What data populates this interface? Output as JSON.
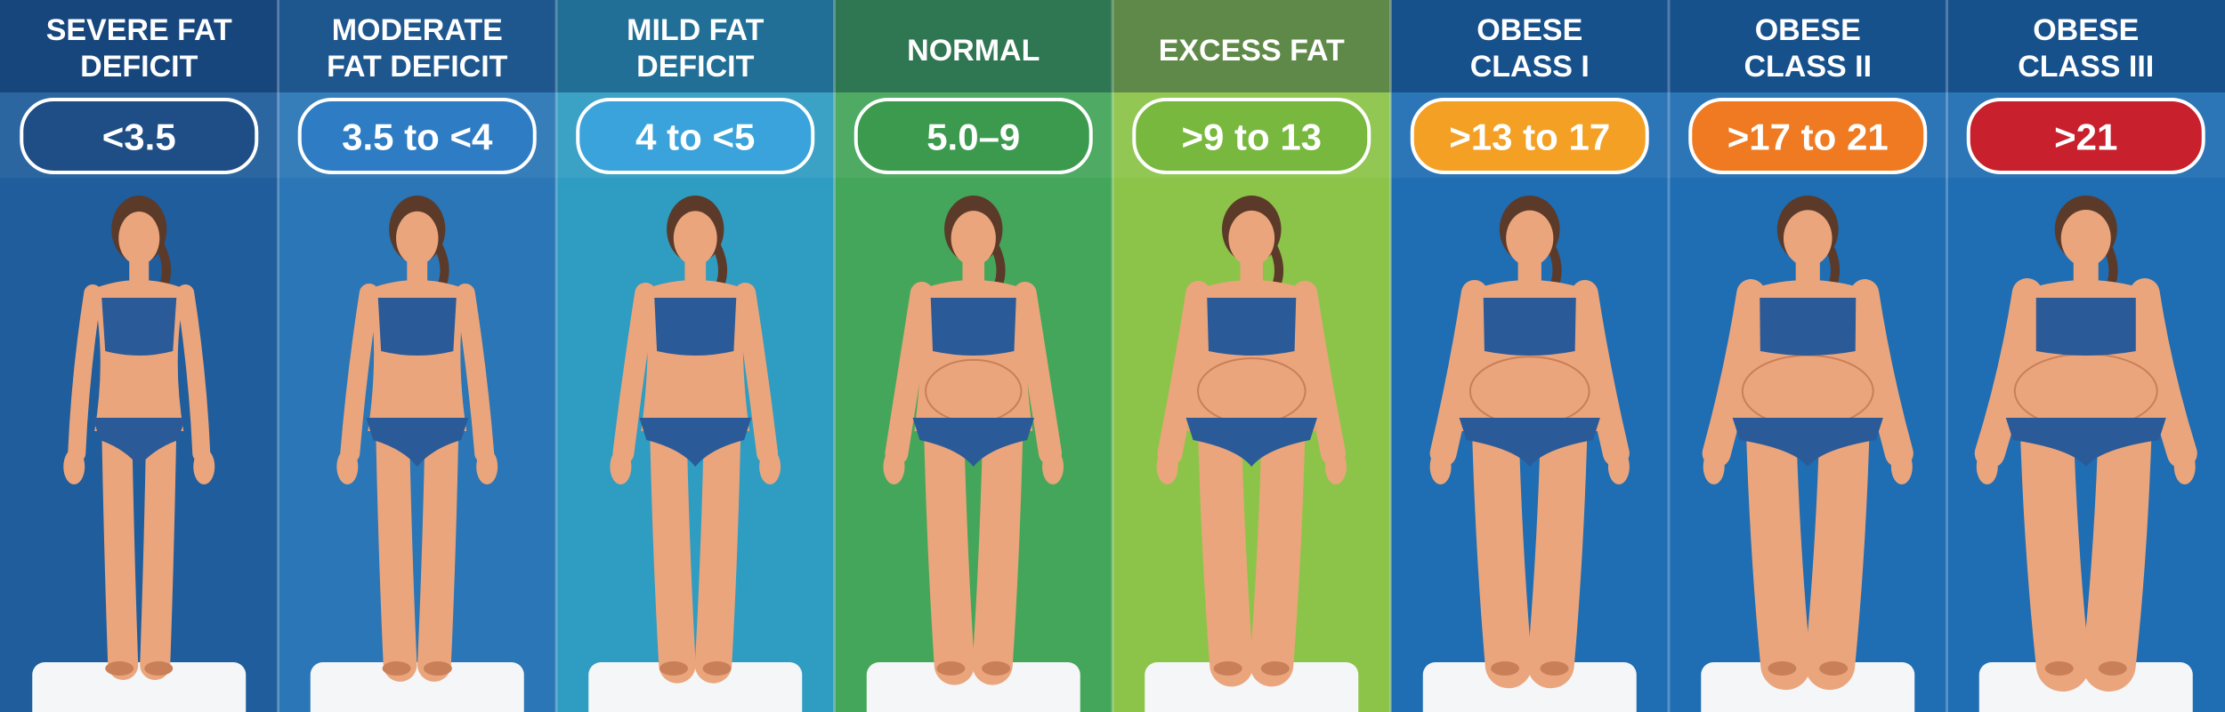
{
  "columns": [
    {
      "title": [
        "SEVERE FAT",
        "DEFICIT"
      ],
      "range": "<3.5"
    },
    {
      "title": [
        "MODERATE",
        "FAT DEFICIT"
      ],
      "range": "3.5 to <4"
    },
    {
      "title": [
        "MILD FAT",
        "DEFICIT"
      ],
      "range": "4 to <5"
    },
    {
      "title": [
        "NORMAL"
      ],
      "range": "5.0–9"
    },
    {
      "title": [
        "EXCESS FAT"
      ],
      "range": ">9 to 13"
    },
    {
      "title": [
        "OBESE",
        "CLASS I"
      ],
      "range": ">13 to 17"
    },
    {
      "title": [
        "OBESE",
        "CLASS II"
      ],
      "range": ">17 to 21"
    },
    {
      "title": [
        "OBESE",
        "CLASS III"
      ],
      "range": ">21"
    }
  ]
}
